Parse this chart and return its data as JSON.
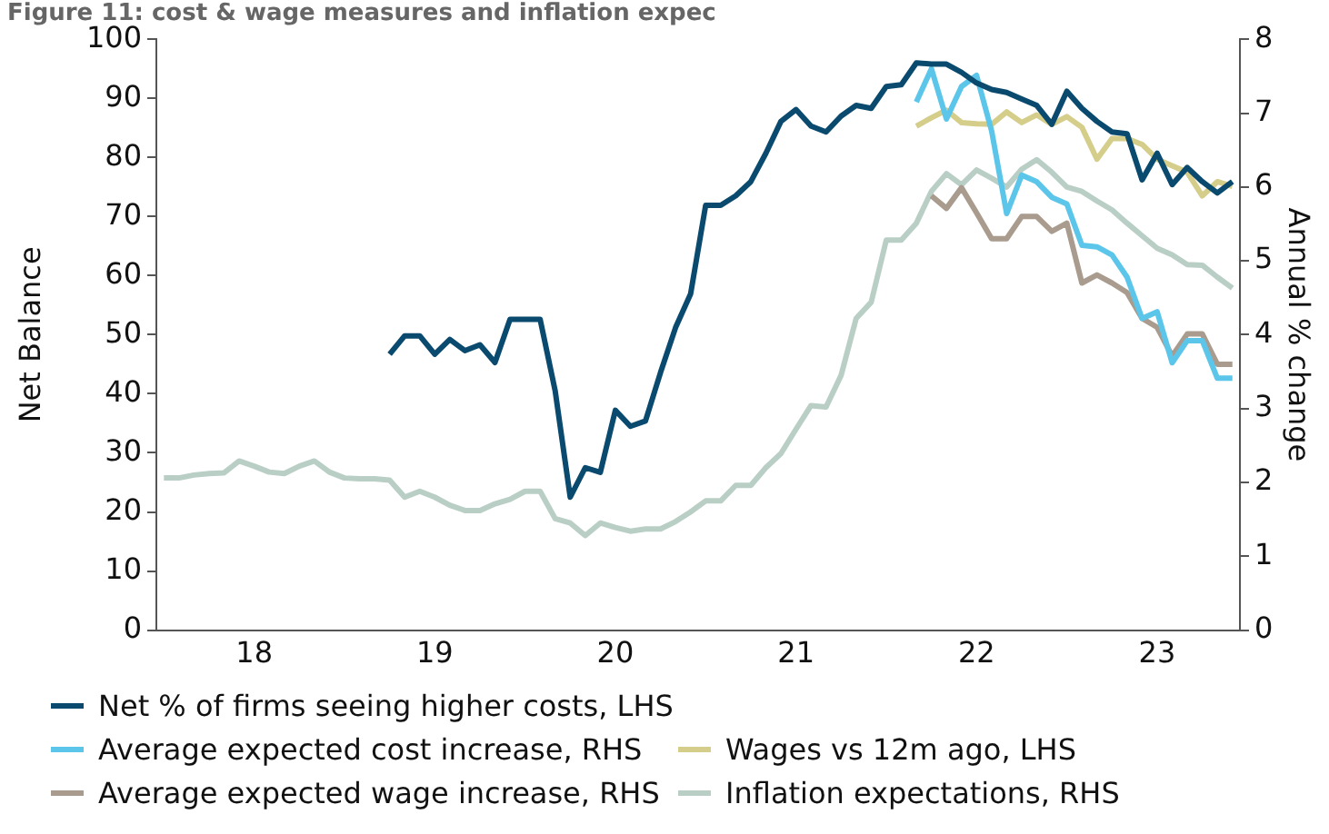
{
  "chart_data": {
    "type": "line",
    "title": "Figure 11: cost & wage measures and inflation expec",
    "ylabel": "Net Balance",
    "y2label": "Annual % change",
    "legend": "bottom",
    "grid": false,
    "marker": "none",
    "line_style": "solid",
    "categories": [
      null,
      null,
      null,
      null,
      null,
      null,
      "18",
      null,
      null,
      null,
      null,
      null,
      null,
      null,
      null,
      null,
      null,
      null,
      "19",
      null,
      null,
      null,
      null,
      null,
      null,
      null,
      null,
      null,
      null,
      null,
      "20",
      null,
      null,
      null,
      null,
      null,
      null,
      null,
      null,
      null,
      null,
      null,
      "21",
      null,
      null,
      null,
      null,
      null,
      null,
      null,
      null,
      null,
      null,
      null,
      "22",
      null,
      null,
      null,
      null,
      null,
      null,
      null,
      null,
      null,
      null,
      null,
      "23",
      null,
      null,
      null,
      null,
      null
    ],
    "ylim": [
      0,
      100
    ],
    "yticks": [
      0,
      10,
      20,
      30,
      40,
      50,
      60,
      70,
      80,
      90,
      100
    ],
    "y2lim": [
      0,
      8
    ],
    "y2ticks": [
      0,
      1,
      2,
      3,
      4,
      5,
      6,
      7,
      8
    ],
    "series": [
      {
        "name": "Net % of firms seeing higher costs, LHS",
        "color": "#0a4a6e",
        "axis": "y",
        "values": [
          null,
          null,
          null,
          null,
          null,
          null,
          null,
          null,
          null,
          null,
          null,
          null,
          null,
          null,
          null,
          46.7,
          49.8,
          49.8,
          46.7,
          49.2,
          47.3,
          48.3,
          45.3,
          52.6,
          52.6,
          52.6,
          40.5,
          22.5,
          27.5,
          26.7,
          37.2,
          34.5,
          35.4,
          43.6,
          51.2,
          56.9,
          71.9,
          71.9,
          73.5,
          75.9,
          80.7,
          86.1,
          88.1,
          85.3,
          84.3,
          87.0,
          88.8,
          88.3,
          92.0,
          92.3,
          96.0,
          95.8,
          95.8,
          94.4,
          92.6,
          91.5,
          91.0,
          89.9,
          88.8,
          85.6,
          91.2,
          88.3,
          86.1,
          84.3,
          84.0,
          76.2,
          80.7,
          75.4,
          78.3,
          75.9,
          74.0,
          75.9
        ]
      },
      {
        "name": "Average expected cost increase, RHS",
        "color": "#5cc6ea",
        "axis": "y2",
        "values": [
          null,
          null,
          null,
          null,
          null,
          null,
          null,
          null,
          null,
          null,
          null,
          null,
          null,
          null,
          null,
          null,
          null,
          null,
          null,
          null,
          null,
          null,
          null,
          null,
          null,
          null,
          null,
          null,
          null,
          null,
          null,
          null,
          null,
          null,
          null,
          null,
          null,
          null,
          null,
          null,
          null,
          null,
          null,
          null,
          null,
          null,
          null,
          null,
          null,
          null,
          7.15,
          7.6,
          6.92,
          7.36,
          7.51,
          6.76,
          5.64,
          6.16,
          6.07,
          5.86,
          5.77,
          5.21,
          5.19,
          5.08,
          4.78,
          4.22,
          4.31,
          3.62,
          3.92,
          3.92,
          3.41,
          3.41
        ]
      },
      {
        "name": "Wages vs 12m ago, LHS",
        "color": "#d5cd8a",
        "axis": "y",
        "values": [
          null,
          null,
          null,
          null,
          null,
          null,
          null,
          null,
          null,
          null,
          null,
          null,
          null,
          null,
          null,
          null,
          null,
          null,
          null,
          null,
          null,
          null,
          null,
          null,
          null,
          null,
          null,
          null,
          null,
          null,
          null,
          null,
          null,
          null,
          null,
          null,
          null,
          null,
          null,
          null,
          null,
          null,
          null,
          null,
          null,
          null,
          null,
          null,
          null,
          null,
          85.3,
          86.7,
          88.0,
          85.9,
          85.7,
          85.6,
          87.7,
          85.9,
          87.2,
          85.6,
          86.9,
          85.1,
          79.7,
          83.2,
          83.2,
          82.2,
          79.7,
          78.6,
          77.5,
          73.5,
          75.9,
          75.1
        ]
      },
      {
        "name": "Average expected wage increase, RHS",
        "color": "#a99b8d",
        "axis": "y2",
        "values": [
          null,
          null,
          null,
          null,
          null,
          null,
          null,
          null,
          null,
          null,
          null,
          null,
          null,
          null,
          null,
          null,
          null,
          null,
          null,
          null,
          null,
          null,
          null,
          null,
          null,
          null,
          null,
          null,
          null,
          null,
          null,
          null,
          null,
          null,
          null,
          null,
          null,
          null,
          null,
          null,
          null,
          null,
          null,
          null,
          null,
          null,
          null,
          null,
          null,
          null,
          null,
          5.88,
          5.71,
          5.99,
          5.65,
          5.3,
          5.3,
          5.6,
          5.6,
          5.4,
          5.51,
          4.7,
          4.81,
          4.7,
          4.57,
          4.22,
          4.1,
          3.71,
          4.01,
          4.01,
          3.6,
          3.6
        ]
      },
      {
        "name": "Inflation expectations, RHS",
        "color": "#b9cfc6",
        "axis": "y2",
        "values": [
          2.06,
          2.06,
          2.1,
          2.12,
          2.13,
          2.29,
          2.22,
          2.14,
          2.12,
          2.22,
          2.29,
          2.14,
          2.06,
          2.05,
          2.05,
          2.03,
          1.8,
          1.88,
          1.8,
          1.69,
          1.62,
          1.62,
          1.71,
          1.77,
          1.88,
          1.88,
          1.51,
          1.45,
          1.28,
          1.45,
          1.39,
          1.34,
          1.37,
          1.37,
          1.47,
          1.6,
          1.75,
          1.75,
          1.96,
          1.96,
          2.2,
          2.39,
          2.72,
          3.04,
          3.02,
          3.45,
          4.22,
          4.44,
          5.28,
          5.28,
          5.51,
          5.94,
          6.18,
          6.03,
          6.23,
          6.12,
          6.0,
          6.24,
          6.37,
          6.2,
          6.0,
          5.94,
          5.81,
          5.69,
          5.51,
          5.34,
          5.17,
          5.08,
          4.95,
          4.94,
          4.78,
          4.63
        ]
      }
    ]
  }
}
